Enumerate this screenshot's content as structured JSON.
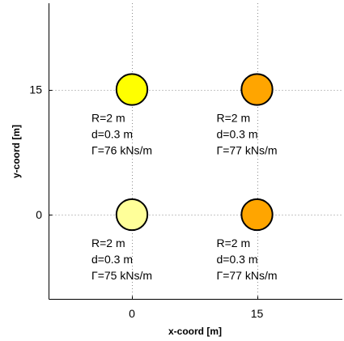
{
  "chart_data": {
    "type": "scatter",
    "title": "",
    "xlabel": "x-coord [m]",
    "ylabel": "y-coord [m]",
    "xlim": [
      -10,
      25
    ],
    "ylim": [
      -10,
      25
    ],
    "x_ticks": [
      0,
      15
    ],
    "y_ticks": [
      0,
      15
    ],
    "grid": true,
    "legend": "none",
    "points": [
      {
        "x": 0,
        "y": 15,
        "radius": 2,
        "color": "#ffff00",
        "lines": [
          "R=2 m",
          "d=0.3 m",
          "Γ=76 kNs/m"
        ]
      },
      {
        "x": 15,
        "y": 15,
        "radius": 2,
        "color": "#ffa500",
        "lines": [
          "R=2 m",
          "d=0.3 m",
          "Γ=77 kNs/m"
        ]
      },
      {
        "x": 0,
        "y": 0,
        "radius": 2,
        "color": "#ffff99",
        "lines": [
          "R=2 m",
          "d=0.3 m",
          "Γ=75 kNs/m"
        ]
      },
      {
        "x": 15,
        "y": 0,
        "radius": 2,
        "color": "#ffa500",
        "lines": [
          "R=2 m",
          "d=0.3 m",
          "Γ=77 kNs/m"
        ]
      }
    ]
  }
}
